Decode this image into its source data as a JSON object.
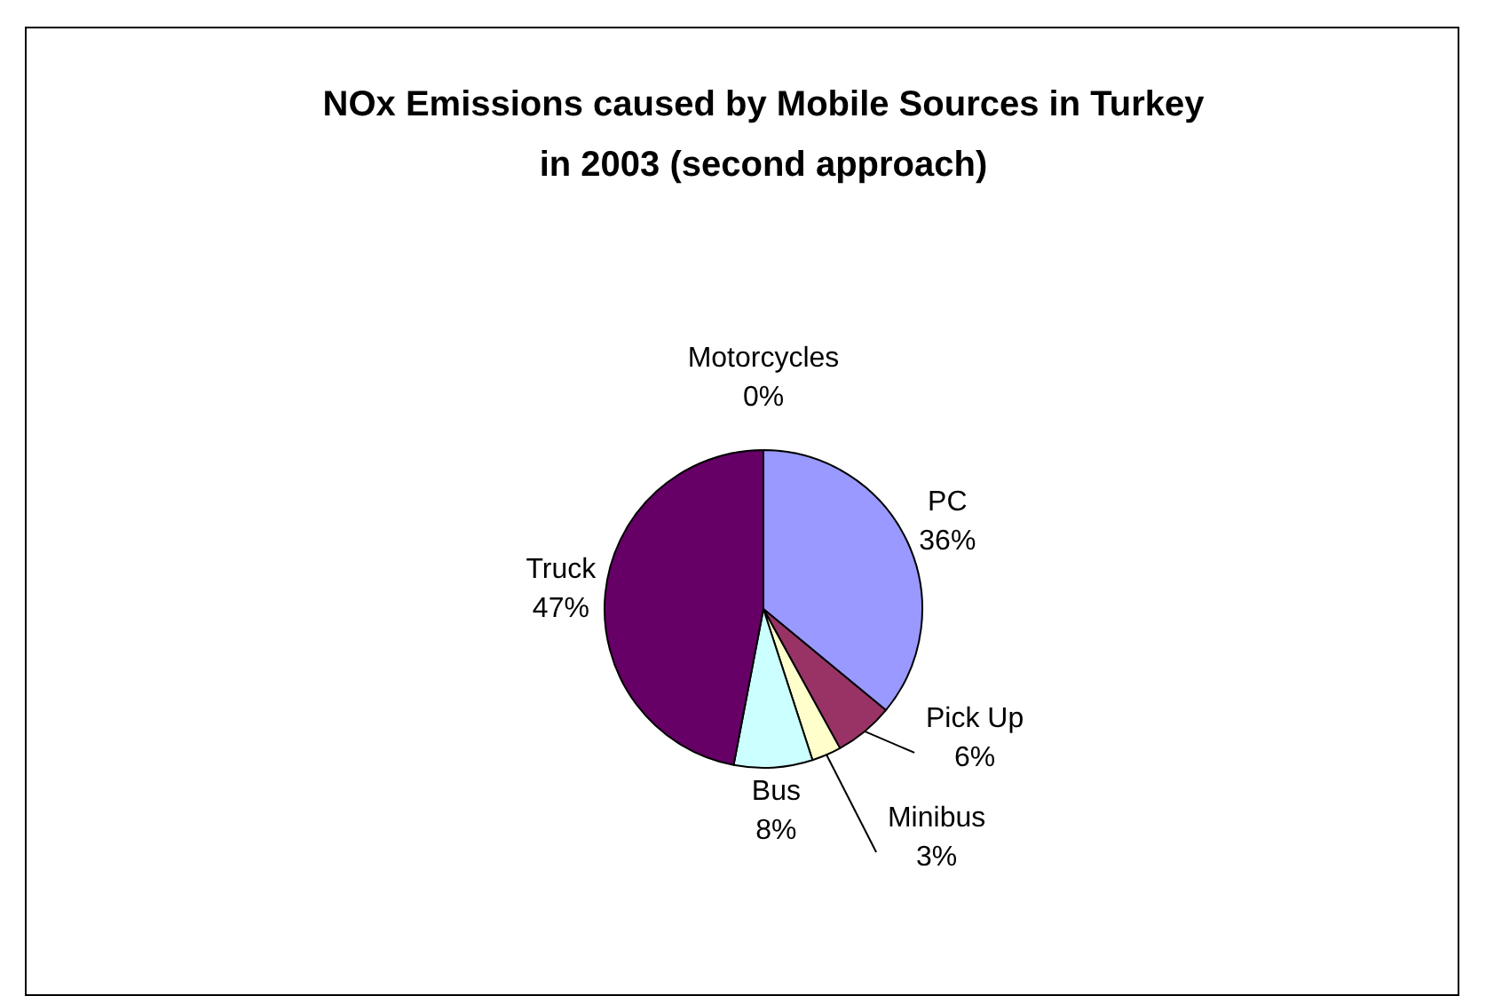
{
  "chart_data": {
    "type": "pie",
    "title": "NOx Emissions caused by Mobile Sources in Turkey in 2003 (second approach)",
    "categories": [
      "PC",
      "Pick Up",
      "Minibus",
      "Bus",
      "Truck",
      "Motorcycles"
    ],
    "values": [
      36,
      6,
      3,
      8,
      47,
      0
    ],
    "value_labels": [
      "36%",
      "6%",
      "3%",
      "8%",
      "47%",
      "0%"
    ],
    "colors": [
      "#9999ff",
      "#993366",
      "#ffffcc",
      "#ccffff",
      "#660066",
      "#ff8080"
    ],
    "legend": false
  }
}
